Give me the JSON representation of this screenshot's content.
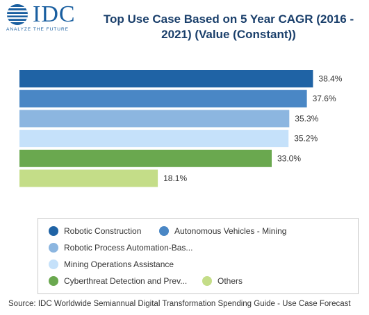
{
  "logo": {
    "name": "IDC",
    "tagline": "ANALYZE THE FUTURE",
    "color": "#1a5fa0"
  },
  "chart_data": {
    "type": "bar",
    "orientation": "horizontal",
    "title": "Top Use Case Based on 5 Year CAGR (2016 - 2021) (Value (Constant))",
    "categories": [
      "Robotic Construction",
      "Autonomous Vehicles - Mining",
      "Robotic Process Automation-Bas...",
      "Mining Operations Assistance",
      "Cyberthreat Detection and Prev...",
      "Others"
    ],
    "values": [
      38.4,
      37.6,
      35.3,
      35.2,
      33.0,
      18.1
    ],
    "value_labels": [
      "38.4%",
      "37.6%",
      "35.3%",
      "35.2%",
      "33.0%",
      "18.1%"
    ],
    "colors": [
      "#1f63a5",
      "#4a87c5",
      "#8cb6e0",
      "#c5e1fa",
      "#6aa84f",
      "#c4dd88"
    ],
    "xlim": [
      0,
      45
    ],
    "grid": false,
    "legend_position": "bottom"
  },
  "source": "Source: IDC Worldwide Semiannual Digital Transformation Spending Guide - Use Case Forecast"
}
